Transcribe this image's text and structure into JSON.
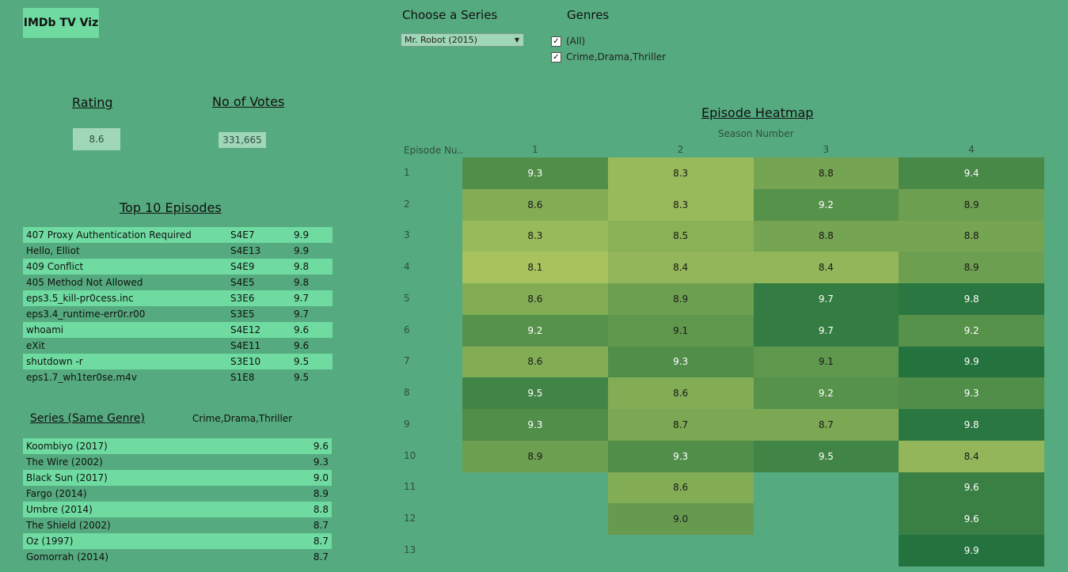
{
  "app_title": "IMDb TV Viz",
  "kpi": {
    "rating_label": "Rating",
    "rating_value": "8.6",
    "votes_label": "No of Votes",
    "votes_value": "331,665"
  },
  "filters": {
    "series_label": "Choose a Series",
    "series_selected": "Mr. Robot (2015)",
    "genres_label": "Genres",
    "genre_options": [
      {
        "label": "(All)",
        "checked": true
      },
      {
        "label": "Crime,Drama,Thriller",
        "checked": true
      }
    ]
  },
  "top_episodes": {
    "title": "Top 10 Episodes",
    "rows": [
      {
        "name": "407 Proxy Authentication Required",
        "code": "S4E7",
        "rating": "9.9"
      },
      {
        "name": "Hello, Elliot",
        "code": "S4E13",
        "rating": "9.9"
      },
      {
        "name": "409 Conflict",
        "code": "S4E9",
        "rating": "9.8"
      },
      {
        "name": "405 Method Not Allowed",
        "code": "S4E5",
        "rating": "9.8"
      },
      {
        "name": "eps3.5_kill-pr0cess.inc",
        "code": "S3E6",
        "rating": "9.7"
      },
      {
        "name": "eps3.4_runtime-err0r.r00",
        "code": "S3E5",
        "rating": "9.7"
      },
      {
        "name": "whoami",
        "code": "S4E12",
        "rating": "9.6"
      },
      {
        "name": "eXit",
        "code": "S4E11",
        "rating": "9.6"
      },
      {
        "name": "shutdown -r",
        "code": "S3E10",
        "rating": "9.5"
      },
      {
        "name": "eps1.7_wh1ter0se.m4v",
        "code": "S1E8",
        "rating": "9.5"
      }
    ]
  },
  "similar_series": {
    "title": "Series (Same Genre)",
    "genre": "Crime,Drama,Thriller",
    "rows": [
      {
        "name": "Koombiyo (2017)",
        "rating": "9.6"
      },
      {
        "name": "The Wire (2002)",
        "rating": "9.3"
      },
      {
        "name": "Black Sun (2017)",
        "rating": "9.0"
      },
      {
        "name": "Fargo (2014)",
        "rating": "8.9"
      },
      {
        "name": "Umbre (2014)",
        "rating": "8.8"
      },
      {
        "name": "The Shield (2002)",
        "rating": "8.7"
      },
      {
        "name": "Oz (1997)",
        "rating": "8.7"
      },
      {
        "name": "Gomorrah (2014)",
        "rating": "8.7"
      }
    ]
  },
  "chart_data": {
    "type": "heatmap",
    "title": "Episode Heatmap",
    "xlabel": "Season Number",
    "ylabel": "Episode Nu..",
    "seasons": [
      "1",
      "2",
      "3",
      "4"
    ],
    "episodes": [
      "1",
      "2",
      "3",
      "4",
      "5",
      "6",
      "7",
      "8",
      "9",
      "10",
      "11",
      "12",
      "13"
    ],
    "values": [
      [
        9.3,
        8.6,
        8.3,
        8.1,
        8.6,
        9.2,
        8.6,
        9.5,
        9.3,
        8.9,
        null,
        null,
        null
      ],
      [
        8.3,
        8.3,
        8.5,
        8.4,
        8.9,
        9.1,
        9.3,
        8.6,
        8.7,
        9.3,
        8.6,
        9.0,
        null
      ],
      [
        8.8,
        9.2,
        8.8,
        8.4,
        9.7,
        9.7,
        9.1,
        9.2,
        8.7,
        9.5,
        null,
        null,
        null
      ],
      [
        9.4,
        8.9,
        8.8,
        8.9,
        9.8,
        9.2,
        9.9,
        9.3,
        9.8,
        8.4,
        9.6,
        9.6,
        9.9
      ]
    ],
    "color_low": "#a8c35e",
    "color_high": "#24733f"
  }
}
